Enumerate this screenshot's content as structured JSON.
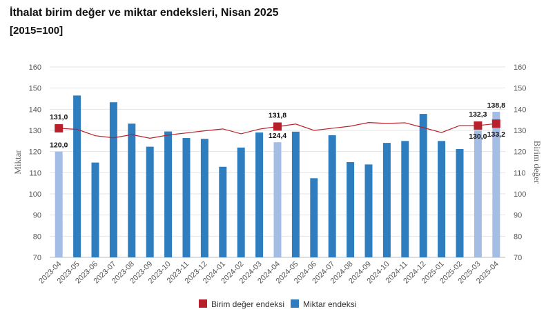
{
  "header": {
    "title": "İthalat birim değer ve miktar endeksleri, Nisan 2025",
    "subtitle": "[2015=100]"
  },
  "chart_data": {
    "type": "bar",
    "categories": [
      "2023-04",
      "2023-05",
      "2023-06",
      "2023-07",
      "2023-08",
      "2023-09",
      "2023-10",
      "2023-11",
      "2023-12",
      "2024-01",
      "2024-02",
      "2024-03",
      "2024-04",
      "2024-05",
      "2024-06",
      "2024-07",
      "2024-08",
      "2024-09",
      "2024-10",
      "2024-11",
      "2024-12",
      "2025-01",
      "2025-02",
      "2025-03",
      "2025-04"
    ],
    "ylabel_left": "Miktar",
    "ylabel_right": "Birim değer",
    "ylim": [
      70,
      160
    ],
    "yticks": [
      70,
      80,
      90,
      100,
      110,
      120,
      130,
      140,
      150,
      160
    ],
    "colors": {
      "bar": "#2e7dbf",
      "bar_highlight": "#a4bde4",
      "line": "#b8212b",
      "marker": "#b8212b",
      "grid": "#e3e3e3"
    },
    "series": [
      {
        "name": "Miktar endeksi",
        "kind": "bar",
        "axis": "left",
        "values": [
          120.0,
          146.5,
          114.8,
          143.3,
          133.2,
          122.3,
          129.5,
          126.4,
          126.0,
          112.8,
          121.9,
          129.0,
          124.4,
          129.4,
          107.4,
          127.7,
          115.0,
          113.9,
          124.1,
          125.0,
          137.8,
          125.0,
          121.2,
          130.0,
          138.8
        ],
        "highlight_index": [
          0,
          12,
          23,
          24
        ],
        "labels": {
          "0": "120,0",
          "12": "124,4",
          "23": "130,0",
          "24": "138,8"
        }
      },
      {
        "name": "Birim değer endeksi",
        "kind": "line",
        "axis": "right",
        "values": [
          131.0,
          130.5,
          127.5,
          126.5,
          128.0,
          126.3,
          127.8,
          128.8,
          129.8,
          130.7,
          128.4,
          130.6,
          131.8,
          133.0,
          130.0,
          131.0,
          132.0,
          133.7,
          133.3,
          133.6,
          131.3,
          129.0,
          132.3,
          132.3,
          133.2
        ],
        "marker_index": [
          0,
          12,
          23,
          24
        ],
        "labels": {
          "0": "131,0",
          "12": "131,8",
          "23": "132,3",
          "24": "133,2"
        }
      }
    ],
    "legend": {
      "position": "bottom-center",
      "items": [
        "Birim değer endeksi",
        "Miktar endeksi"
      ]
    }
  }
}
